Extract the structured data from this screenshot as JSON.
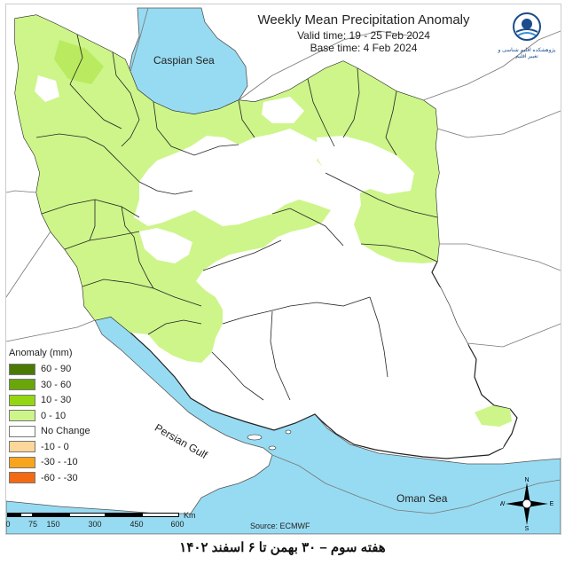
{
  "title": "Weekly Mean Precipitation Anomaly",
  "valid_time": "Valid time:  19 - 25 Feb 2024",
  "base_time": "Base time: 4 Feb 2024",
  "logo": {
    "name": "climate-research-logo",
    "caption": "پژوهشکده اقلیم شناسی و تغییر اقلیم"
  },
  "sea_labels": {
    "caspian": "Caspian Sea",
    "persian_gulf": "Persian Gulf",
    "oman": "Oman Sea"
  },
  "legend": {
    "title": "Anomaly (mm)",
    "items": [
      {
        "label": "60 - 90",
        "color": "#4a7a04"
      },
      {
        "label": "30 - 60",
        "color": "#6aa60a"
      },
      {
        "label": "10 - 30",
        "color": "#94d611"
      },
      {
        "label": "0 - 10",
        "color": "#cdf58a"
      },
      {
        "label": "No Change",
        "color": "#ffffff"
      },
      {
        "label": "-10 - 0",
        "color": "#fdd699"
      },
      {
        "label": "-30 - -10",
        "color": "#f7a51e"
      },
      {
        "label": "-60 - -30",
        "color": "#f36a12"
      }
    ]
  },
  "scale": {
    "ticks": [
      "0",
      "75",
      "150",
      "300",
      "450",
      "600"
    ],
    "unit": "Km"
  },
  "source": "Source: ECMWF",
  "compass": {
    "n": "N",
    "s": "S",
    "e": "E",
    "w": "W"
  },
  "footer": "هفته سوم – ۳۰ بهمن تا ۶ اسفند ۱۴۰۲",
  "colors": {
    "water": "#97dbf2",
    "land": "#ffffff",
    "border": "#555555",
    "province": "#222222"
  }
}
